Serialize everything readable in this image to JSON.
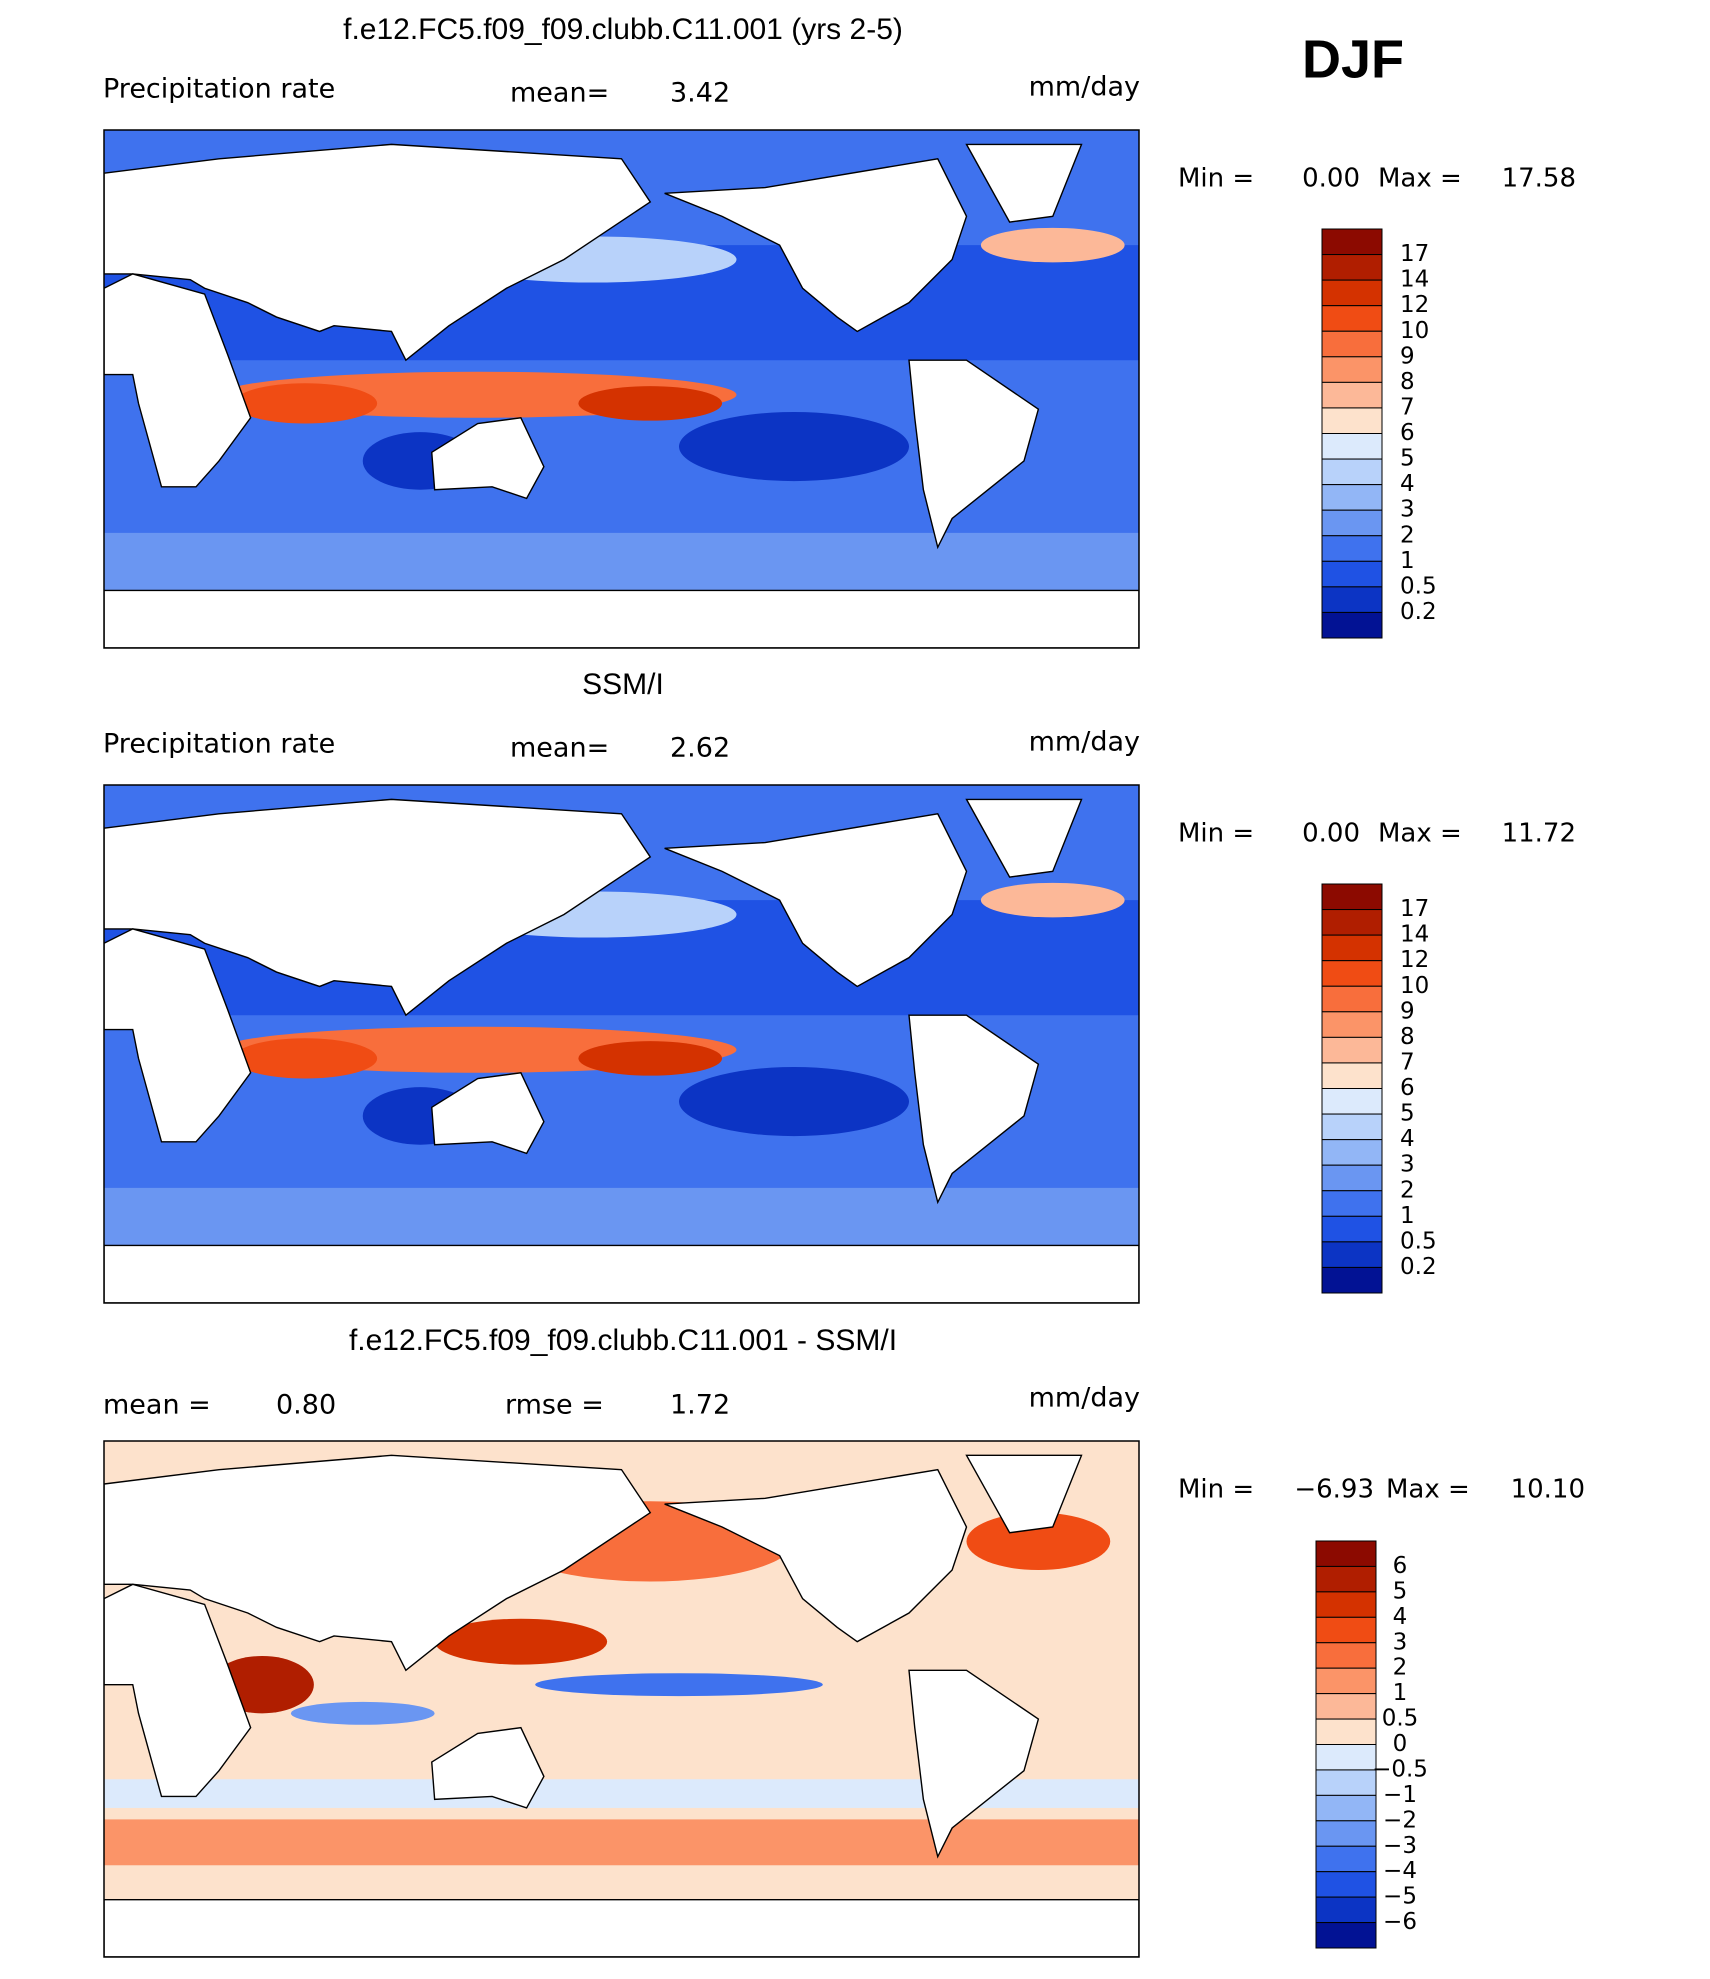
{
  "season": "DJF",
  "panels": [
    {
      "title": "f.e12.FC5.f09_f09.clubb.C11.001 (yrs 2-5)",
      "left_label": "Precipitation rate",
      "mid_label": "mean=",
      "mid_value": "3.42",
      "units": "mm/day",
      "min_label": "Min =",
      "min_value": "0.00",
      "max_label": "Max =",
      "max_value": "17.58",
      "colorbar": {
        "levels": [
          "17",
          "14",
          "12",
          "10",
          "9",
          "8",
          "7",
          "6",
          "5",
          "4",
          "3",
          "2",
          "1",
          "0.5",
          "0.2"
        ],
        "colors": [
          "#8c0a00",
          "#b01e00",
          "#d43200",
          "#f04c14",
          "#f86e3c",
          "#fb9468",
          "#fcb898",
          "#fde2cc",
          "#dceafc",
          "#b8d2fa",
          "#92b6f6",
          "#6a96f2",
          "#3f72ee",
          "#1f52e4",
          "#0c34c4",
          "#021294"
        ]
      }
    },
    {
      "title": "SSM/I",
      "left_label": "Precipitation rate",
      "mid_label": "mean=",
      "mid_value": "2.62",
      "units": "mm/day",
      "min_label": "Min =",
      "min_value": "0.00",
      "max_label": "Max =",
      "max_value": "11.72",
      "colorbar": {
        "levels": [
          "17",
          "14",
          "12",
          "10",
          "9",
          "8",
          "7",
          "6",
          "5",
          "4",
          "3",
          "2",
          "1",
          "0.5",
          "0.2"
        ],
        "colors": [
          "#8c0a00",
          "#b01e00",
          "#d43200",
          "#f04c14",
          "#f86e3c",
          "#fb9468",
          "#fcb898",
          "#fde2cc",
          "#dceafc",
          "#b8d2fa",
          "#92b6f6",
          "#6a96f2",
          "#3f72ee",
          "#1f52e4",
          "#0c34c4",
          "#021294"
        ]
      }
    },
    {
      "title": "f.e12.FC5.f09_f09.clubb.C11.001 - SSM/I",
      "left_label": "mean =",
      "left_value": "0.80",
      "mid_label": "rmse =",
      "mid_value": "1.72",
      "units": "mm/day",
      "min_label": "Min =",
      "min_value": "−6.93",
      "max_label": "Max =",
      "max_value": "10.10",
      "colorbar": {
        "levels": [
          "6",
          "5",
          "4",
          "3",
          "2",
          "1",
          "0.5",
          "0",
          "−0.5",
          "−1",
          "−2",
          "−3",
          "−4",
          "−5",
          "−6"
        ],
        "colors": [
          "#8c0a00",
          "#b01e00",
          "#d43200",
          "#f04c14",
          "#f86e3c",
          "#fb9468",
          "#fcb898",
          "#fde2cc",
          "#dceafc",
          "#b8d2fa",
          "#92b6f6",
          "#6a96f2",
          "#3f72ee",
          "#1f52e4",
          "#0c34c4",
          "#021294"
        ]
      }
    }
  ]
}
